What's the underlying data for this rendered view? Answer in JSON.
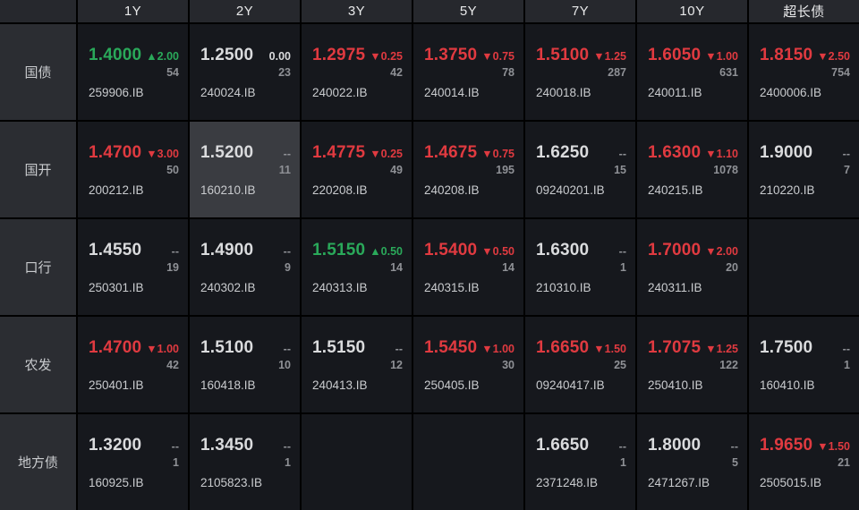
{
  "colors": {
    "up_green": "#2aa95a",
    "down_red": "#e03a40",
    "neutral_white": "#dadbdd",
    "muted_gray": "#8f9196",
    "header_bg": "#26282d",
    "row_label_bg": "#2b2d32",
    "cell_bg": "#16181d",
    "highlight_bg": "#3a3c41",
    "grid_line": "#000000"
  },
  "board": {
    "columns": [
      "1Y",
      "2Y",
      "3Y",
      "5Y",
      "7Y",
      "10Y",
      "超长债"
    ],
    "rows": [
      {
        "label": "国债",
        "cells": [
          {
            "value": "1.4000",
            "value_color": "green",
            "change": "▲2.00",
            "change_color": "green",
            "count": "54",
            "code": "259906.IB"
          },
          {
            "value": "1.2500",
            "value_color": "white",
            "change": "0.00",
            "change_color": "white",
            "count": "23",
            "code": "240024.IB"
          },
          {
            "value": "1.2975",
            "value_color": "red",
            "change": "▼0.25",
            "change_color": "red",
            "count": "42",
            "code": "240022.IB"
          },
          {
            "value": "1.3750",
            "value_color": "red",
            "change": "▼0.75",
            "change_color": "red",
            "count": "78",
            "code": "240014.IB"
          },
          {
            "value": "1.5100",
            "value_color": "red",
            "change": "▼1.25",
            "change_color": "red",
            "count": "287",
            "code": "240018.IB"
          },
          {
            "value": "1.6050",
            "value_color": "red",
            "change": "▼1.00",
            "change_color": "red",
            "count": "631",
            "code": "240011.IB"
          },
          {
            "value": "1.8150",
            "value_color": "red",
            "change": "▼2.50",
            "change_color": "red",
            "count": "754",
            "code": "2400006.IB"
          }
        ]
      },
      {
        "label": "国开",
        "cells": [
          {
            "value": "1.4700",
            "value_color": "red",
            "change": "▼3.00",
            "change_color": "red",
            "count": "50",
            "code": "200212.IB"
          },
          {
            "value": "1.5200",
            "value_color": "white",
            "change": "--",
            "change_color": "gray",
            "count": "11",
            "code": "160210.IB",
            "highlight": true
          },
          {
            "value": "1.4775",
            "value_color": "red",
            "change": "▼0.25",
            "change_color": "red",
            "count": "49",
            "code": "220208.IB"
          },
          {
            "value": "1.4675",
            "value_color": "red",
            "change": "▼0.75",
            "change_color": "red",
            "count": "195",
            "code": "240208.IB"
          },
          {
            "value": "1.6250",
            "value_color": "white",
            "change": "--",
            "change_color": "gray",
            "count": "15",
            "code": "09240201.IB"
          },
          {
            "value": "1.6300",
            "value_color": "red",
            "change": "▼1.10",
            "change_color": "red",
            "count": "1078",
            "code": "240215.IB"
          },
          {
            "value": "1.9000",
            "value_color": "white",
            "change": "--",
            "change_color": "gray",
            "count": "7",
            "code": "210220.IB"
          }
        ]
      },
      {
        "label": "口行",
        "cells": [
          {
            "value": "1.4550",
            "value_color": "white",
            "change": "--",
            "change_color": "gray",
            "count": "19",
            "code": "250301.IB"
          },
          {
            "value": "1.4900",
            "value_color": "white",
            "change": "--",
            "change_color": "gray",
            "count": "9",
            "code": "240302.IB"
          },
          {
            "value": "1.5150",
            "value_color": "green",
            "change": "▲0.50",
            "change_color": "green",
            "count": "14",
            "code": "240313.IB"
          },
          {
            "value": "1.5400",
            "value_color": "red",
            "change": "▼0.50",
            "change_color": "red",
            "count": "14",
            "code": "240315.IB"
          },
          {
            "value": "1.6300",
            "value_color": "white",
            "change": "--",
            "change_color": "gray",
            "count": "1",
            "code": "210310.IB"
          },
          {
            "value": "1.7000",
            "value_color": "red",
            "change": "▼2.00",
            "change_color": "red",
            "count": "20",
            "code": "240311.IB"
          },
          null
        ]
      },
      {
        "label": "农发",
        "cells": [
          {
            "value": "1.4700",
            "value_color": "red",
            "change": "▼1.00",
            "change_color": "red",
            "count": "42",
            "code": "250401.IB"
          },
          {
            "value": "1.5100",
            "value_color": "white",
            "change": "--",
            "change_color": "gray",
            "count": "10",
            "code": "160418.IB"
          },
          {
            "value": "1.5150",
            "value_color": "white",
            "change": "--",
            "change_color": "gray",
            "count": "12",
            "code": "240413.IB"
          },
          {
            "value": "1.5450",
            "value_color": "red",
            "change": "▼1.00",
            "change_color": "red",
            "count": "30",
            "code": "250405.IB"
          },
          {
            "value": "1.6650",
            "value_color": "red",
            "change": "▼1.50",
            "change_color": "red",
            "count": "25",
            "code": "09240417.IB"
          },
          {
            "value": "1.7075",
            "value_color": "red",
            "change": "▼1.25",
            "change_color": "red",
            "count": "122",
            "code": "250410.IB"
          },
          {
            "value": "1.7500",
            "value_color": "white",
            "change": "--",
            "change_color": "gray",
            "count": "1",
            "code": "160410.IB"
          }
        ]
      },
      {
        "label": "地方债",
        "cells": [
          {
            "value": "1.3200",
            "value_color": "white",
            "change": "--",
            "change_color": "gray",
            "count": "1",
            "code": "160925.IB"
          },
          {
            "value": "1.3450",
            "value_color": "white",
            "change": "--",
            "change_color": "gray",
            "count": "1",
            "code": "2105823.IB"
          },
          null,
          null,
          {
            "value": "1.6650",
            "value_color": "white",
            "change": "--",
            "change_color": "gray",
            "count": "1",
            "code": "2371248.IB"
          },
          {
            "value": "1.8000",
            "value_color": "white",
            "change": "--",
            "change_color": "gray",
            "count": "5",
            "code": "2471267.IB"
          },
          {
            "value": "1.9650",
            "value_color": "red",
            "change": "▼1.50",
            "change_color": "red",
            "count": "21",
            "code": "2505015.IB"
          }
        ]
      }
    ]
  }
}
